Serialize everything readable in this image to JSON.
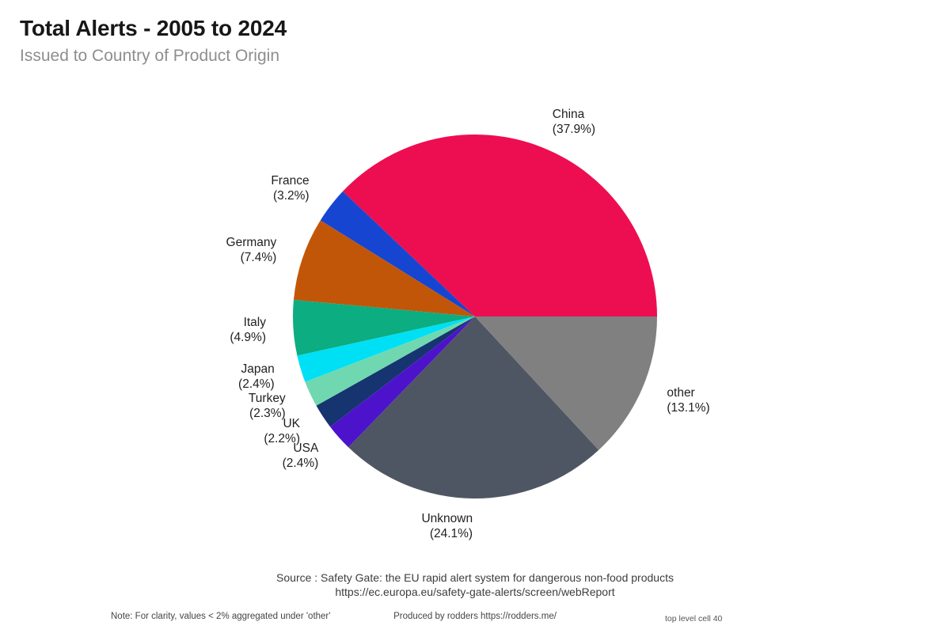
{
  "header": {
    "title": "Total Alerts - 2005 to 2024",
    "subtitle": "Issued to Country of Product Origin"
  },
  "chart_data": {
    "type": "pie",
    "title": "Total Alerts - 2005 to 2024",
    "subtitle": "Issued to Country of Product Origin",
    "labels": [
      "China",
      "France",
      "Germany",
      "Italy",
      "Japan",
      "Turkey",
      "UK",
      "USA",
      "Unknown",
      "other"
    ],
    "values": [
      37.9,
      3.2,
      7.4,
      4.9,
      2.4,
      2.3,
      2.2,
      2.4,
      24.1,
      13.1
    ],
    "pct_labels": [
      "(37.9%)",
      "(3.2%)",
      "(7.4%)",
      "(4.9%)",
      "(2.4%)",
      "(2.3%)",
      "(2.2%)",
      "(2.4%)",
      "(24.1%)",
      "(13.1%)"
    ],
    "colors": [
      "#ED0E51",
      "#1646D1",
      "#C25608",
      "#0CAD80",
      "#00E0F5",
      "#70D8B0",
      "#16346F",
      "#4D13CB",
      "#4F5663",
      "#808080"
    ],
    "start_angle_deg": 0,
    "direction": "counterclockwise",
    "label_distance": 1.15,
    "legend": "none",
    "grid": "off"
  },
  "footer": {
    "source_line1": "Source : Safety Gate: the EU rapid alert system for dangerous non-food products",
    "source_line2": "https://ec.europa.eu/safety-gate-alerts/screen/webReport",
    "note": "Note: For clarity, values < 2% aggregated under 'other'",
    "produced": "Produced by rodders https://rodders.me/",
    "cell_ref": "top level cell 40"
  }
}
